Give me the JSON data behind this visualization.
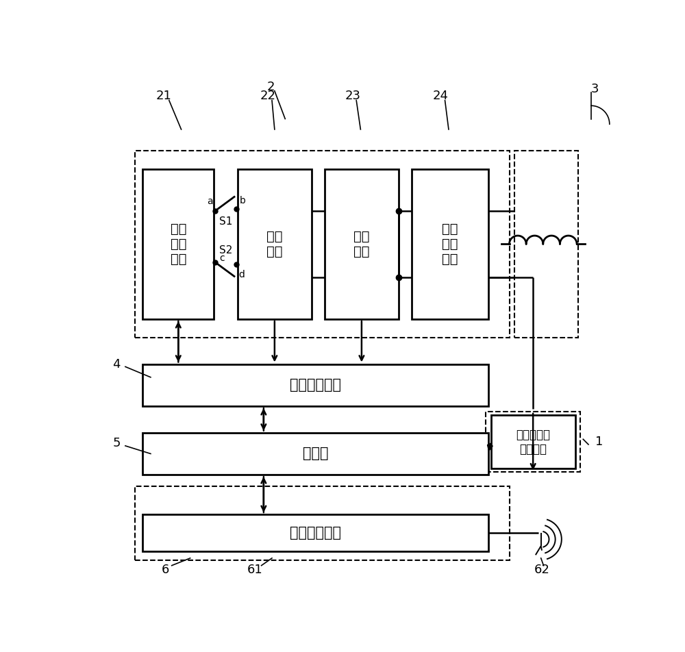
{
  "bg_color": "#ffffff",
  "labels": {
    "block21": "全控\n整流\n电路",
    "block22": "调压\n电路",
    "block23": "逆变\n电路",
    "block24": "谐振\n补偿\n电路",
    "block4": "采样控制单元",
    "block5": "工控机",
    "block6_inner": "通信测试设备",
    "block1": "功率分析仪\n或示波器"
  }
}
